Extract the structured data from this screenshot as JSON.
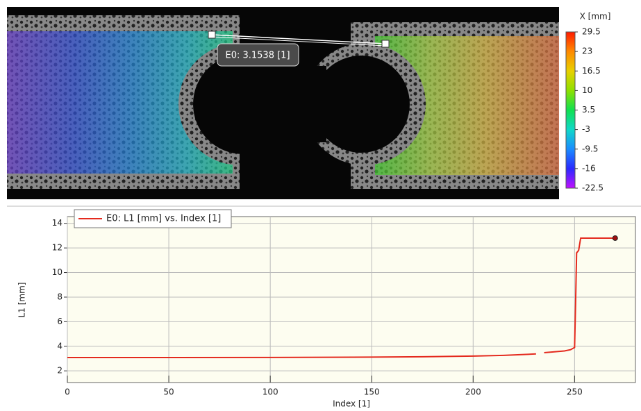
{
  "image_panel": {
    "annotation": "E0: 3.1538 [1]",
    "colorbar": {
      "title": "X [mm]",
      "clim": [
        -22.5,
        29.5
      ],
      "ticks": [
        29.5,
        23,
        16.5,
        10,
        3.5,
        -3,
        -9.5,
        -16,
        -22.5
      ],
      "colors": [
        "#ff1a00",
        "#ff8a00",
        "#e8d000",
        "#8ee000",
        "#10e050",
        "#10d8c8",
        "#1a8cff",
        "#2a2aff",
        "#c010ff"
      ]
    }
  },
  "chart_data": {
    "type": "line",
    "x_label": "Index [1]",
    "y_label": "L1 [mm]",
    "x": [
      0,
      50,
      100,
      150,
      175,
      200,
      215,
      225,
      231,
      233,
      235,
      240,
      245,
      248,
      250,
      250.5,
      251,
      252,
      253,
      260,
      270
    ],
    "series": [
      {
        "name": "E0: L1 [mm] vs. Index [1]",
        "color": "#e42a1e",
        "values": [
          3.08,
          3.08,
          3.09,
          3.12,
          3.15,
          3.2,
          3.26,
          3.33,
          3.38,
          null,
          3.48,
          3.55,
          3.62,
          3.72,
          3.9,
          7.5,
          11.6,
          11.8,
          12.8,
          12.8,
          12.8
        ]
      }
    ],
    "xlim": [
      0,
      280
    ],
    "ylim": [
      1.05,
      14.55
    ],
    "xticks": [
      0,
      50,
      100,
      150,
      200,
      250
    ],
    "yticks": [
      2,
      4,
      6,
      8,
      10,
      12,
      14
    ],
    "grid": true,
    "legend": "top-left"
  }
}
